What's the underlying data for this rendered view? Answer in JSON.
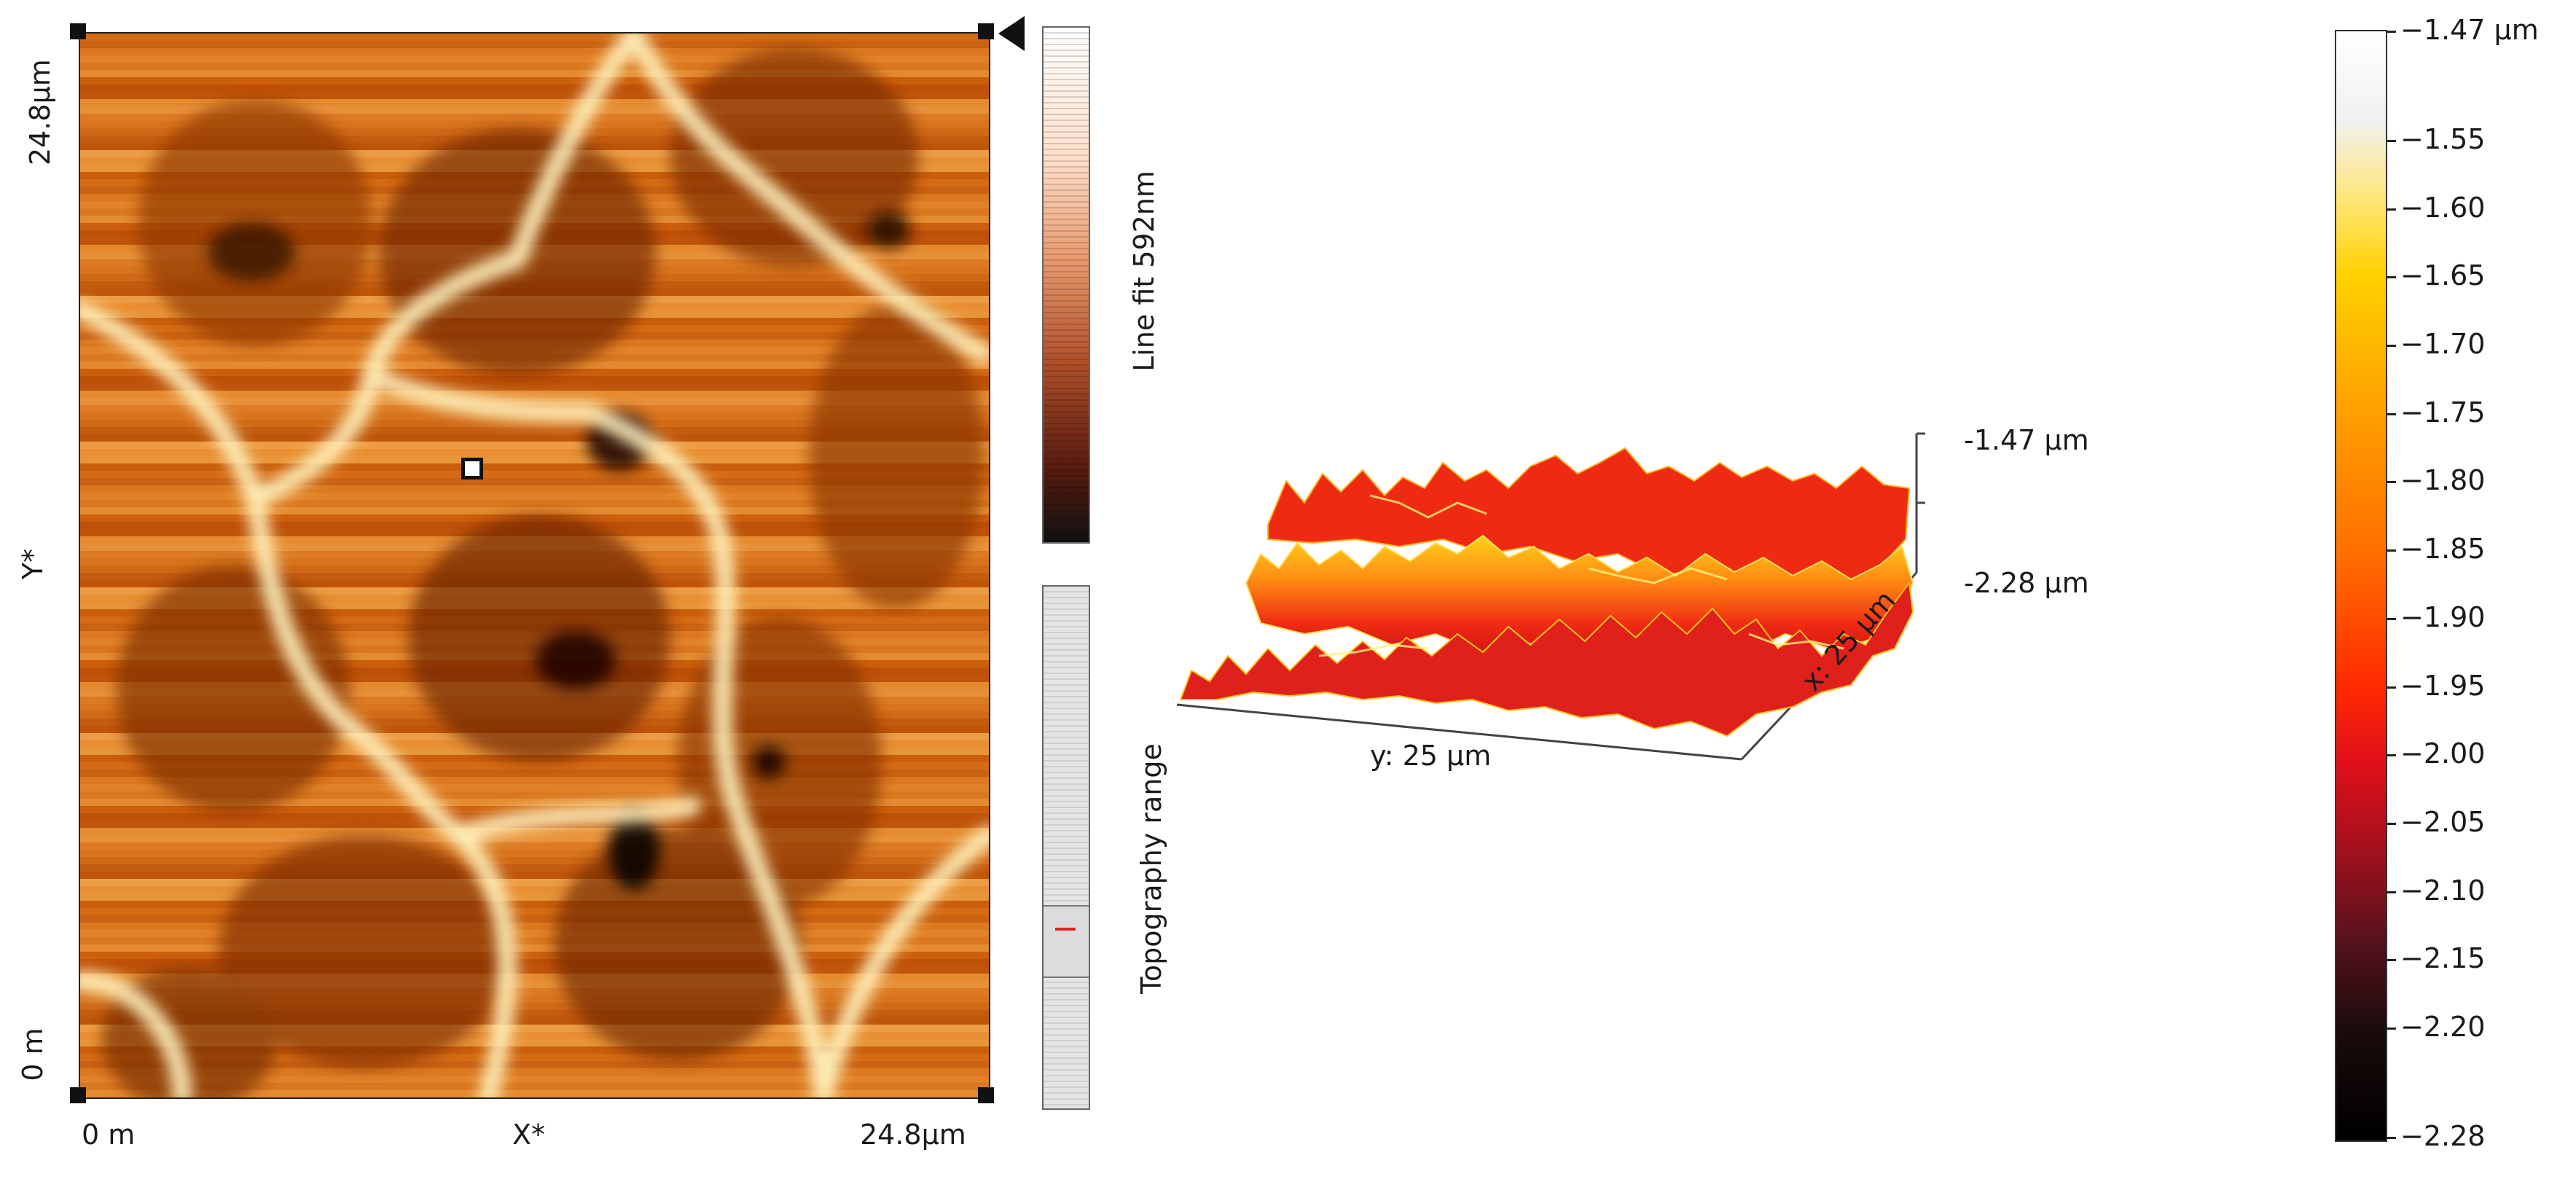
{
  "afm_image": {
    "y_axis": {
      "top_label": "24.8µm",
      "mid_label": "Y*",
      "bottom_label": "0 m"
    },
    "x_axis": {
      "left_label": "0 m",
      "mid_label": "X*",
      "right_label": "24.8µm"
    },
    "rows": [
      {
        "c": "#d56b14"
      },
      {
        "c": "#e28228"
      },
      {
        "c": "#cc5f0d"
      },
      {
        "c": "#e58a2f"
      },
      {
        "c": "#d7741d"
      },
      {
        "c": "#be560a"
      },
      {
        "c": "#e8953a"
      },
      {
        "c": "#c96212"
      },
      {
        "c": "#da781f"
      },
      {
        "c": "#bf5007"
      },
      {
        "c": "#e7903a"
      },
      {
        "c": "#d06a17"
      },
      {
        "c": "#ec9c45"
      },
      {
        "c": "#c95f0c"
      },
      {
        "c": "#db7820"
      },
      {
        "c": "#e48b31"
      },
      {
        "c": "#bf550b"
      },
      {
        "c": "#dc7b24"
      },
      {
        "c": "#c45c10"
      },
      {
        "c": "#e88f33"
      }
    ]
  },
  "line_fit_bar": {
    "label": "Line fit 592nm"
  },
  "topography_bar": {
    "label": "Topography range"
  },
  "surface_3d": {
    "z_top": "-1.47 µm",
    "z_bottom": "-2.28 µm",
    "y_axis": "y: 25 µm",
    "x_axis": "x: 25 µm",
    "colors": {
      "low": "#c80f12",
      "mid": "#ef2a13",
      "high": "#ffd21a"
    }
  },
  "colorbar": {
    "ticks": [
      "−1.47 µm",
      "−1.55",
      "−1.60",
      "−1.65",
      "−1.70",
      "−1.75",
      "−1.80",
      "−1.85",
      "−1.90",
      "−1.95",
      "−2.00",
      "−2.05",
      "−2.10",
      "−2.15",
      "−2.20",
      "−2.28"
    ],
    "values": [
      -1.47,
      -1.55,
      -1.6,
      -1.65,
      -1.7,
      -1.75,
      -1.8,
      -1.85,
      -1.9,
      -1.95,
      -2.0,
      -2.05,
      -2.1,
      -2.15,
      -2.2,
      -2.28
    ],
    "min": -2.28,
    "max": -1.47
  }
}
